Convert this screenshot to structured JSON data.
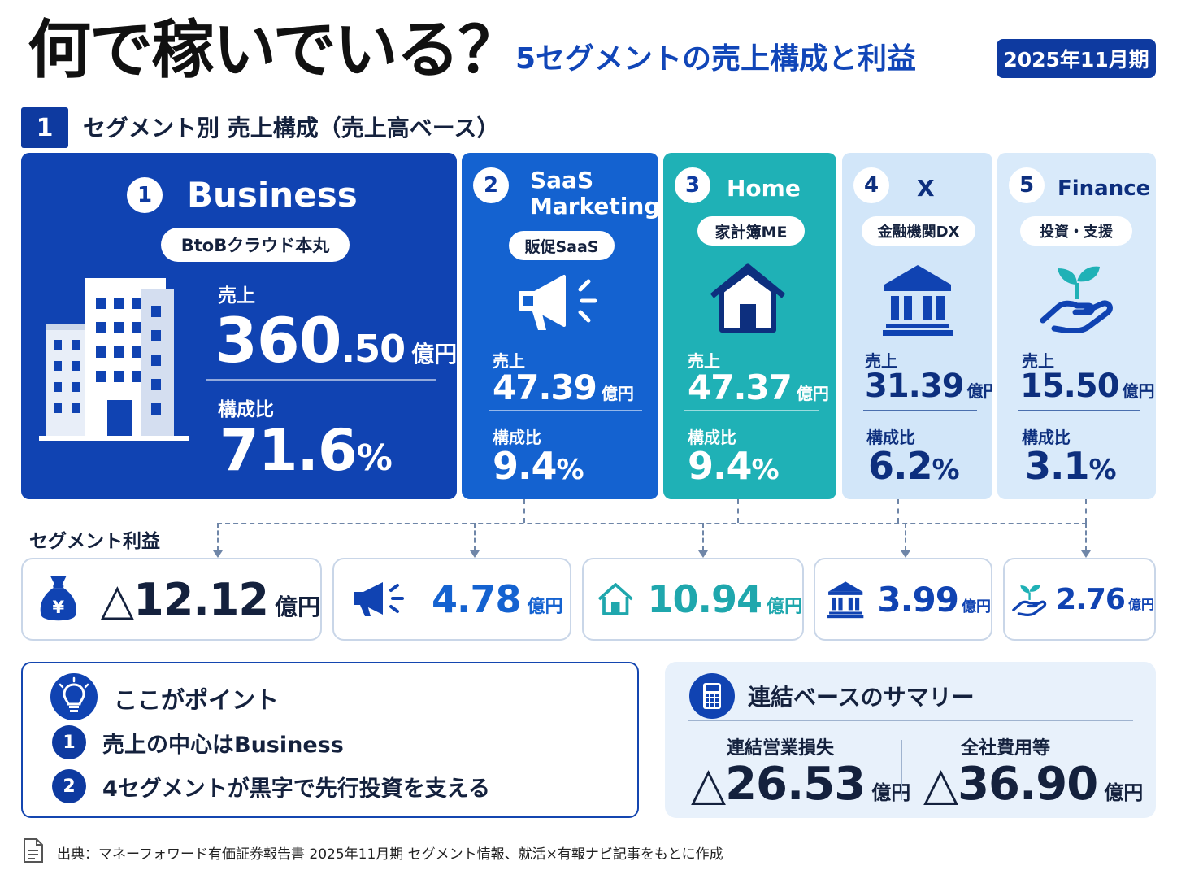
{
  "header": {
    "title": "何で稼いでいる？",
    "subtitle": "5セグメントの売上構成と利益",
    "period": "2025年11月期"
  },
  "section1": {
    "number": "1",
    "title": "セグメント別 売上構成（売上高ベース）"
  },
  "segments": [
    {
      "num": "1",
      "name": "Business",
      "tag": "BtoBクラウド本丸",
      "sales_label": "売上",
      "sales": "360",
      "sales_dec": ".50",
      "unit": "億円",
      "ratio_label": "構成比",
      "ratio": "71.6",
      "pct": "%",
      "icon": "office-building-icon"
    },
    {
      "num": "2",
      "name": "SaaS Marketing",
      "tag": "販促SaaS",
      "sales_label": "売上",
      "sales": "47.39",
      "unit": "億円",
      "ratio_label": "構成比",
      "ratio": "9.4",
      "pct": "%",
      "icon": "megaphone-icon"
    },
    {
      "num": "3",
      "name": "Home",
      "tag": "家計簿ME",
      "sales_label": "売上",
      "sales": "47.37",
      "unit": "億円",
      "ratio_label": "構成比",
      "ratio": "9.4",
      "pct": "%",
      "icon": "house-icon"
    },
    {
      "num": "4",
      "name": "X",
      "tag": "金融機関DX",
      "sales_label": "売上",
      "sales": "31.39",
      "unit": "億円",
      "ratio_label": "構成比",
      "ratio": "6.2",
      "pct": "%",
      "icon": "bank-icon"
    },
    {
      "num": "5",
      "name": "Finance",
      "tag": "投資・支援",
      "sales_label": "売上",
      "sales": "15.50",
      "unit": "億円",
      "ratio_label": "構成比",
      "ratio": "3.1",
      "pct": "%",
      "icon": "sprout-hand-icon"
    }
  ],
  "profit": {
    "title": "セグメント利益",
    "items": [
      {
        "value": "△12.12",
        "unit": "億円",
        "icon": "money-bag-yen-icon",
        "color": "#14213d"
      },
      {
        "value": "4.78",
        "unit": "億円",
        "icon": "megaphone-icon",
        "color": "#1462d0"
      },
      {
        "value": "10.94",
        "unit": "億円",
        "icon": "house-icon",
        "color": "#1fa7ad"
      },
      {
        "value": "3.99",
        "unit": "億円",
        "icon": "bank-icon",
        "color": "#1043b2"
      },
      {
        "value": "2.76",
        "unit": "億円",
        "icon": "sprout-hand-icon",
        "color": "#1043b2"
      }
    ]
  },
  "points": {
    "title": "ここがポイント",
    "icon": "lightbulb-icon",
    "items": [
      {
        "num": "1",
        "text": "売上の中心はBusiness"
      },
      {
        "num": "2",
        "text": "4セグメントが黒字で先行投資を支える"
      }
    ]
  },
  "summary": {
    "title": "連結ベースのサマリー",
    "icon": "calculator-icon",
    "items": [
      {
        "label": "連結営業損失",
        "value": "△26.53",
        "unit": "億円"
      },
      {
        "label": "全社費用等",
        "value": "△36.90",
        "unit": "億円"
      }
    ]
  },
  "source": "出典：マネーフォワード有価証券報告書 2025年11月期 セグメント情報、就活×有報ナビ記事をもとに作成",
  "colors": {
    "navy": "#0e3aa0",
    "blue": "#1462d0",
    "teal": "#1fb1b6",
    "light_blue": "#d2e6f9"
  }
}
